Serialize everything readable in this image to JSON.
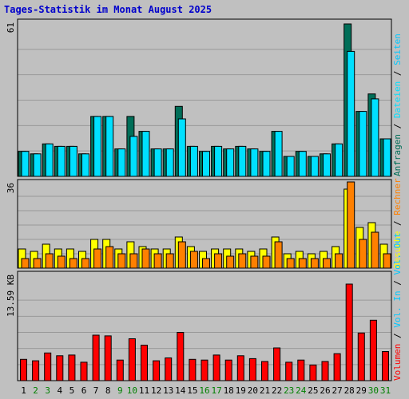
{
  "chart_data": {
    "type": "bar",
    "title": "Tages-Statistik im Monat August 2025",
    "colors": {
      "background": "#c0c0c0",
      "plot": "#c0c0c0",
      "grid": "#999999",
      "frame": "#000000",
      "title": "#0000cc",
      "weekday": "#000000",
      "weekend": "#008000",
      "anfragen": "#006e58",
      "dateien": "#00e0ff",
      "seiten": "#00c8ff",
      "besuche": "#ffff00",
      "rechner": "#ff8000",
      "volumen": "#ff0000",
      "separator": "#000000"
    },
    "x": [
      "1",
      "2",
      "3",
      "4",
      "5",
      "6",
      "7",
      "8",
      "9",
      "10",
      "11",
      "12",
      "13",
      "14",
      "15",
      "16",
      "17",
      "18",
      "19",
      "20",
      "21",
      "22",
      "23",
      "24",
      "25",
      "26",
      "27",
      "28",
      "29",
      "30",
      "31"
    ],
    "weekend_days": [
      "2",
      "3",
      "9",
      "10",
      "16",
      "17",
      "23",
      "24",
      "30",
      "31"
    ],
    "panels": [
      {
        "id": "hits",
        "ymax_label": "61",
        "ymax": 61,
        "series": [
          {
            "name": "Anfragen",
            "color_key": "anfragen",
            "values": [
              10,
              9,
              13,
              12,
              12,
              9,
              24,
              24,
              11,
              24,
              18,
              11,
              11,
              28,
              12,
              10,
              12,
              11,
              12,
              11,
              10,
              18,
              8,
              10,
              8,
              9,
              13,
              61,
              26,
              33,
              15
            ]
          },
          {
            "name": "Dateien",
            "color_key": "dateien",
            "values": [
              10,
              9,
              13,
              12,
              12,
              9,
              24,
              24,
              11,
              16,
              18,
              11,
              11,
              23,
              12,
              10,
              12,
              11,
              12,
              11,
              10,
              18,
              8,
              10,
              8,
              9,
              13,
              50,
              26,
              31,
              15
            ]
          }
        ],
        "side_labels": [
          {
            "text": "Anfragen",
            "color_key": "anfragen"
          },
          {
            "text": " / ",
            "color_key": "separator"
          },
          {
            "text": "Dateien",
            "color_key": "dateien"
          },
          {
            "text": " / ",
            "color_key": "separator"
          },
          {
            "text": "Seiten",
            "color_key": "seiten"
          }
        ]
      },
      {
        "id": "visits",
        "ymax_label": "36",
        "ymax": 36,
        "series": [
          {
            "name": "Besuche",
            "color_key": "besuche",
            "values": [
              8,
              7,
              10,
              8,
              8,
              7,
              12,
              12,
              8,
              11,
              9,
              8,
              8,
              13,
              9,
              7,
              8,
              8,
              8,
              7,
              8,
              13,
              6,
              7,
              6,
              7,
              9,
              33,
              17,
              19,
              10
            ]
          },
          {
            "name": "Rechner",
            "color_key": "rechner",
            "values": [
              4,
              4,
              6,
              5,
              4,
              4,
              8,
              9,
              6,
              6,
              8,
              6,
              6,
              11,
              7,
              4,
              6,
              5,
              6,
              5,
              5,
              11,
              4,
              4,
              4,
              4,
              6,
              36,
              12,
              15,
              6
            ]
          }
        ],
        "side_labels": [
          {
            "text": "Besuche",
            "color_key": "besuche"
          },
          {
            "text": " / ",
            "color_key": "separator"
          },
          {
            "text": "Rechner",
            "color_key": "rechner"
          }
        ]
      },
      {
        "id": "volume",
        "ymax_label": "13.59 KB",
        "ymax": 13.59,
        "series": [
          {
            "name": "Volumen",
            "color_key": "volumen",
            "values": [
              3.0,
              2.8,
              3.9,
              3.5,
              3.6,
              2.6,
              6.4,
              6.3,
              2.9,
              5.9,
              5.0,
              2.8,
              3.2,
              6.8,
              3.0,
              2.9,
              3.6,
              2.9,
              3.5,
              3.1,
              2.7,
              4.6,
              2.6,
              2.9,
              2.2,
              2.7,
              3.8,
              13.59,
              6.7,
              8.5,
              4.1
            ]
          }
        ],
        "side_labels": [
          {
            "text": "Volumen",
            "color_key": "volumen"
          },
          {
            "text": " / ",
            "color_key": "separator"
          },
          {
            "text": "Vol. In",
            "color_key": "seiten"
          },
          {
            "text": " / ",
            "color_key": "separator"
          },
          {
            "text": "Vol. Out",
            "color_key": "seiten"
          }
        ]
      }
    ]
  }
}
